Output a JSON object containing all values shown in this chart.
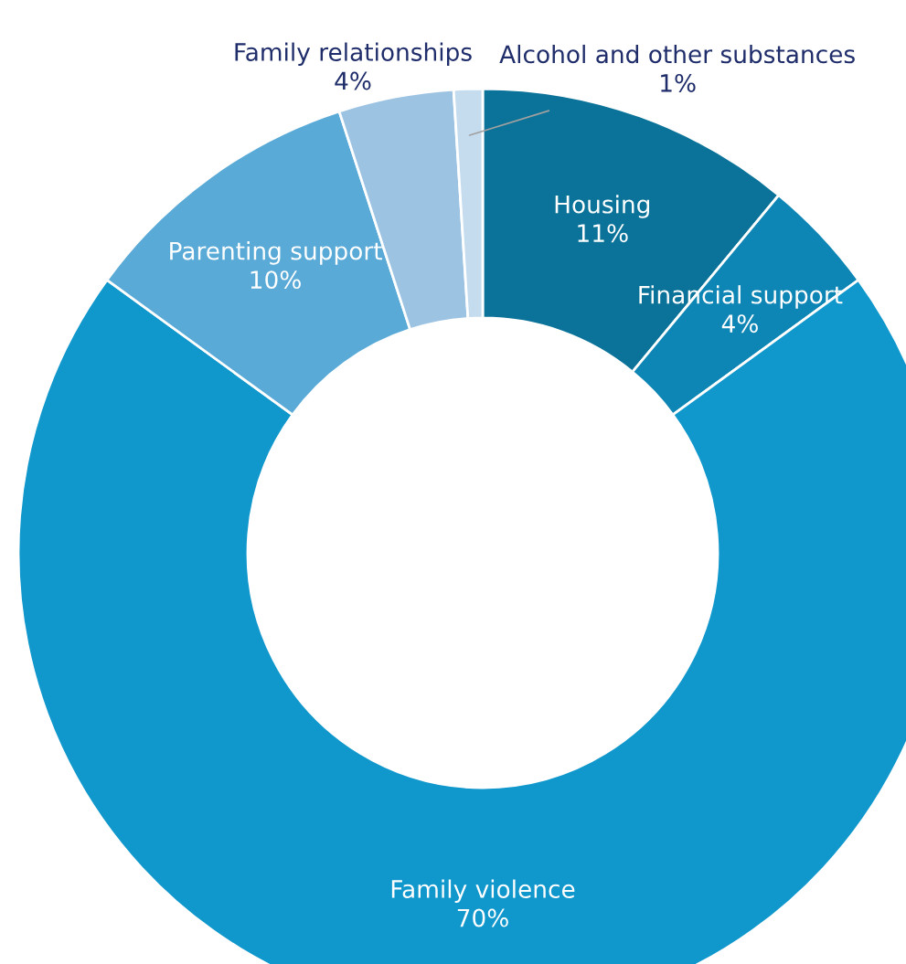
{
  "chart_data": {
    "type": "donut",
    "categories": [
      "Housing",
      "Financial support",
      "Family violence",
      "Parenting support",
      "Family relationships",
      "Alcohol and other substances"
    ],
    "values": [
      11,
      4,
      70,
      10,
      4,
      1
    ],
    "value_labels": [
      "11%",
      "4%",
      "70%",
      "10%",
      "4%",
      "1%"
    ],
    "colors": [
      "#0b7399",
      "#0e86b5",
      "#1097cc",
      "#5aaad8",
      "#9dc3e3",
      "#c5dcef"
    ],
    "legend": false
  }
}
